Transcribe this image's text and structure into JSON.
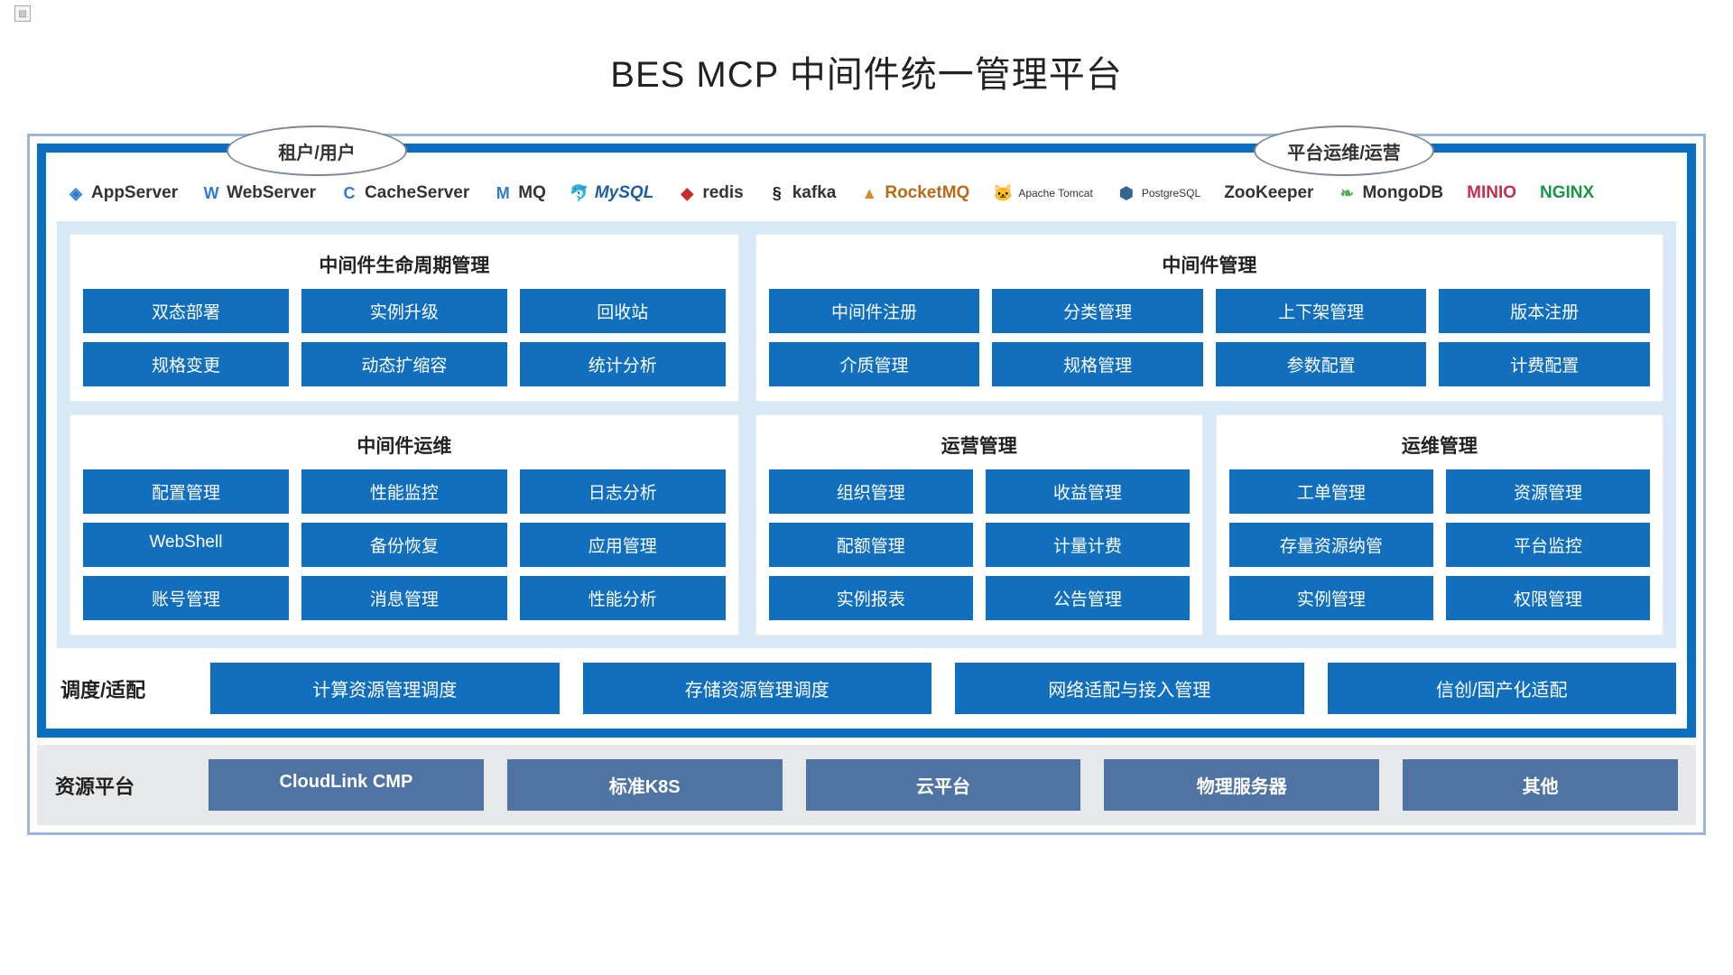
{
  "title": "BES MCP 中间件统一管理平台",
  "colors": {
    "primary_blue": "#126fbe",
    "frame_blue": "#0a6ec0",
    "pale_blue": "#d7e8f6",
    "outer_border": "#9bb7d4",
    "resource_grey_bg": "#e7e8ea",
    "resource_btn": "#4f74a3",
    "text_dark": "#222222",
    "white": "#ffffff"
  },
  "roles": {
    "left": "租户/用户",
    "right": "平台运维/运营"
  },
  "logos": [
    {
      "name": "appserver",
      "label": "AppServer",
      "glyph": "◈",
      "glyph_color": "#2f7bd1"
    },
    {
      "name": "webserver",
      "label": "WebServer",
      "glyph": "W",
      "glyph_color": "#2f7bd1"
    },
    {
      "name": "cacheserver",
      "label": "CacheServer",
      "glyph": "C",
      "glyph_color": "#2f7bd1"
    },
    {
      "name": "mq",
      "label": "MQ",
      "glyph": "M",
      "glyph_color": "#2f7bd1"
    },
    {
      "name": "mysql",
      "label": "MySQL",
      "glyph": "🐬",
      "glyph_color": "#2a6aa0",
      "label_color": "#1f5fa0",
      "italic": true
    },
    {
      "name": "redis",
      "label": "redis",
      "glyph": "◆",
      "glyph_color": "#c6302b",
      "label_color": "#333"
    },
    {
      "name": "kafka",
      "label": "kafka",
      "glyph": "§",
      "glyph_color": "#222"
    },
    {
      "name": "rocketmq",
      "label": "RocketMQ",
      "glyph": "▲",
      "glyph_color": "#d98a2b",
      "label_color": "#b76b16"
    },
    {
      "name": "tomcat",
      "label": "Apache Tomcat",
      "glyph": "🐱",
      "glyph_color": "#d4a638",
      "small": true
    },
    {
      "name": "postgresql",
      "label": "PostgreSQL",
      "glyph": "⬢",
      "glyph_color": "#336791",
      "small": true
    },
    {
      "name": "zookeeper",
      "label": "ZooKeeper",
      "glyph": "",
      "glyph_color": "#222"
    },
    {
      "name": "mongodb",
      "label": "MongoDB",
      "glyph": "❧",
      "glyph_color": "#4caf50"
    },
    {
      "name": "minio",
      "label": "MINIO",
      "glyph": "",
      "glyph_color": "#c42f4b",
      "label_color": "#c42f4b",
      "bold": true
    },
    {
      "name": "nginx",
      "label": "NGINX",
      "glyph": "",
      "glyph_color": "#1a9447",
      "label_color": "#1a9447",
      "bold": true
    }
  ],
  "left_modules": [
    {
      "title": "中间件生命周期管理",
      "cols": 3,
      "items": [
        "双态部署",
        "实例升级",
        "回收站",
        "规格变更",
        "动态扩缩容",
        "统计分析"
      ]
    },
    {
      "title": "中间件运维",
      "cols": 3,
      "items": [
        "配置管理",
        "性能监控",
        "日志分析",
        "WebShell",
        "备份恢复",
        "应用管理",
        "账号管理",
        "消息管理",
        "性能分析"
      ]
    }
  ],
  "right_modules_top": {
    "title": "中间件管理",
    "cols": 4,
    "items": [
      "中间件注册",
      "分类管理",
      "上下架管理",
      "版本注册",
      "介质管理",
      "规格管理",
      "参数配置",
      "计费配置"
    ]
  },
  "right_modules_bottom": [
    {
      "title": "运营管理",
      "cols": 2,
      "items": [
        "组织管理",
        "收益管理",
        "配额管理",
        "计量计费",
        "实例报表",
        "公告管理"
      ]
    },
    {
      "title": "运维管理",
      "cols": 2,
      "items": [
        "工单管理",
        "资源管理",
        "存量资源纳管",
        "平台监控",
        "实例管理",
        "权限管理"
      ]
    }
  ],
  "scheduling": {
    "label": "调度/适配",
    "items": [
      "计算资源管理调度",
      "存储资源管理调度",
      "网络适配与接入管理",
      "信创/国产化适配"
    ]
  },
  "resource": {
    "label": "资源平台",
    "items": [
      "CloudLink CMP",
      "标准K8S",
      "云平台",
      "物理服务器",
      "其他"
    ]
  }
}
